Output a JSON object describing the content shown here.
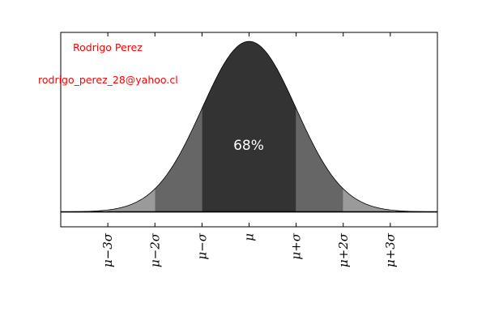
{
  "chart_data": {
    "type": "area",
    "title": "",
    "xlabel": "",
    "ylabel": "",
    "xlim": [
      -4,
      4
    ],
    "ylim": [
      -0.035,
      0.42
    ],
    "grid": false,
    "curve": {
      "distribution": "normal",
      "mean": 0,
      "std": 1
    },
    "x_ticks": [
      {
        "value": -3,
        "label": "μ−3σ"
      },
      {
        "value": -2,
        "label": "μ−2σ"
      },
      {
        "value": -1,
        "label": "μ−σ"
      },
      {
        "value": 0,
        "label": "μ"
      },
      {
        "value": 1,
        "label": "μ+σ"
      },
      {
        "value": 2,
        "label": "μ+2σ"
      },
      {
        "value": 3,
        "label": "μ+3σ"
      }
    ],
    "bands": [
      {
        "from": -3,
        "to": -2,
        "color": "#9a9a9a"
      },
      {
        "from": -2,
        "to": -1,
        "color": "#666666"
      },
      {
        "from": -1,
        "to": 1,
        "color": "#333333"
      },
      {
        "from": 1,
        "to": 2,
        "color": "#666666"
      },
      {
        "from": 2,
        "to": 3,
        "color": "#9a9a9a"
      }
    ],
    "tail_color": "#d0d0d0",
    "baseline_y": 0,
    "annotations": {
      "author": "Rodrigo Perez",
      "email": "rodrigo_perez_28@yahoo.cl",
      "center": "68%"
    },
    "annotation_color": "#ff0000"
  }
}
